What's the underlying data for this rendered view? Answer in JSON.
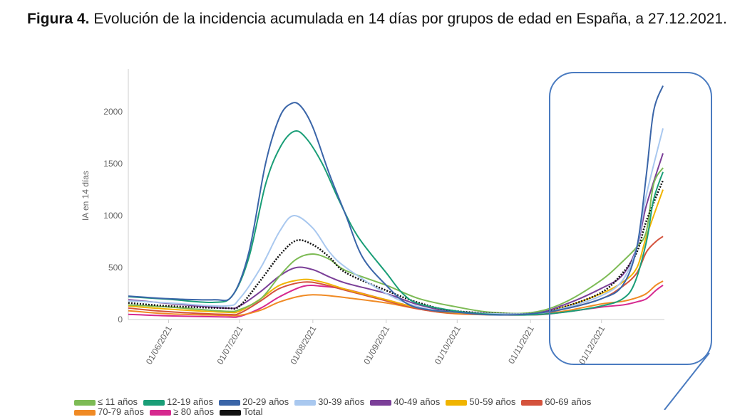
{
  "title": {
    "label": "Figura 4.",
    "text": " Evolución de la incidencia acumulada en 14 días por grupos de edad en España, a 27.12.2021."
  },
  "chart_data": {
    "type": "line",
    "title": "",
    "xlabel": "",
    "ylabel": "IA en 14 días",
    "ylim": [
      0,
      2400
    ],
    "xlim": [
      "2021-05-15",
      "2021-12-27"
    ],
    "yticks": [
      0,
      500,
      1000,
      1500,
      2000
    ],
    "xticks": [
      {
        "date": "2021-06-01",
        "label": "01/06/2021"
      },
      {
        "date": "2021-07-01",
        "label": "01/07/2021"
      },
      {
        "date": "2021-08-01",
        "label": "01/08/2021"
      },
      {
        "date": "2021-09-01",
        "label": "01/09/2021"
      },
      {
        "date": "2021-10-01",
        "label": "01/10/2021"
      },
      {
        "date": "2021-11-01",
        "label": "01/11/2021"
      },
      {
        "date": "2021-12-01",
        "label": "01/12/2021"
      }
    ],
    "grid": false,
    "legend": "bottom",
    "highlight": {
      "from": "2021-11-10",
      "to": "2021-12-27",
      "color": "#4a7bc0"
    },
    "series": [
      {
        "name": "≤ 11 años",
        "color": "#7dbb55",
        "dashed": false,
        "points": [
          [
            "2021-05-15",
            140
          ],
          [
            "2021-06-01",
            120
          ],
          [
            "2021-06-25",
            80
          ],
          [
            "2021-07-01",
            95
          ],
          [
            "2021-07-10",
            200
          ],
          [
            "2021-07-18",
            420
          ],
          [
            "2021-07-25",
            580
          ],
          [
            "2021-08-01",
            630
          ],
          [
            "2021-08-08",
            580
          ],
          [
            "2021-08-15",
            470
          ],
          [
            "2021-09-01",
            330
          ],
          [
            "2021-09-15",
            200
          ],
          [
            "2021-10-01",
            120
          ],
          [
            "2021-10-15",
            70
          ],
          [
            "2021-11-01",
            65
          ],
          [
            "2021-11-15",
            160
          ],
          [
            "2021-12-01",
            380
          ],
          [
            "2021-12-10",
            560
          ],
          [
            "2021-12-16",
            700
          ],
          [
            "2021-12-20",
            850
          ],
          [
            "2021-12-23",
            1300
          ],
          [
            "2021-12-27",
            1460
          ]
        ]
      },
      {
        "name": "12-19 años",
        "color": "#1a9e77",
        "dashed": false,
        "points": [
          [
            "2021-05-15",
            220
          ],
          [
            "2021-06-01",
            195
          ],
          [
            "2021-06-20",
            165
          ],
          [
            "2021-06-28",
            230
          ],
          [
            "2021-07-05",
            600
          ],
          [
            "2021-07-12",
            1300
          ],
          [
            "2021-07-18",
            1650
          ],
          [
            "2021-07-24",
            1810
          ],
          [
            "2021-07-29",
            1750
          ],
          [
            "2021-08-05",
            1500
          ],
          [
            "2021-08-12",
            1150
          ],
          [
            "2021-08-20",
            800
          ],
          [
            "2021-09-01",
            450
          ],
          [
            "2021-09-08",
            250
          ],
          [
            "2021-09-15",
            150
          ],
          [
            "2021-10-01",
            80
          ],
          [
            "2021-10-15",
            50
          ],
          [
            "2021-11-01",
            45
          ],
          [
            "2021-11-15",
            70
          ],
          [
            "2021-12-01",
            130
          ],
          [
            "2021-12-10",
            200
          ],
          [
            "2021-12-15",
            350
          ],
          [
            "2021-12-20",
            750
          ],
          [
            "2021-12-23",
            1150
          ],
          [
            "2021-12-27",
            1420
          ]
        ]
      },
      {
        "name": "20-29 años",
        "color": "#3a65a8",
        "dashed": false,
        "points": [
          [
            "2021-05-15",
            225
          ],
          [
            "2021-06-01",
            200
          ],
          [
            "2021-06-20",
            190
          ],
          [
            "2021-06-28",
            230
          ],
          [
            "2021-07-05",
            650
          ],
          [
            "2021-07-12",
            1500
          ],
          [
            "2021-07-18",
            1950
          ],
          [
            "2021-07-23",
            2080
          ],
          [
            "2021-07-27",
            2050
          ],
          [
            "2021-08-01",
            1850
          ],
          [
            "2021-08-08",
            1400
          ],
          [
            "2021-08-15",
            1000
          ],
          [
            "2021-08-22",
            600
          ],
          [
            "2021-09-01",
            330
          ],
          [
            "2021-09-10",
            150
          ],
          [
            "2021-09-20",
            90
          ],
          [
            "2021-10-01",
            70
          ],
          [
            "2021-10-15",
            45
          ],
          [
            "2021-11-01",
            55
          ],
          [
            "2021-11-15",
            100
          ],
          [
            "2021-12-01",
            200
          ],
          [
            "2021-12-10",
            330
          ],
          [
            "2021-12-16",
            700
          ],
          [
            "2021-12-20",
            1400
          ],
          [
            "2021-12-23",
            2000
          ],
          [
            "2021-12-27",
            2250
          ]
        ]
      },
      {
        "name": "30-39 años",
        "color": "#a9c8ef",
        "dashed": false,
        "points": [
          [
            "2021-05-15",
            180
          ],
          [
            "2021-06-01",
            160
          ],
          [
            "2021-06-25",
            130
          ],
          [
            "2021-07-01",
            200
          ],
          [
            "2021-07-10",
            500
          ],
          [
            "2021-07-18",
            850
          ],
          [
            "2021-07-24",
            1000
          ],
          [
            "2021-08-01",
            880
          ],
          [
            "2021-08-08",
            650
          ],
          [
            "2021-08-15",
            500
          ],
          [
            "2021-09-01",
            250
          ],
          [
            "2021-09-15",
            120
          ],
          [
            "2021-10-01",
            70
          ],
          [
            "2021-11-01",
            55
          ],
          [
            "2021-11-15",
            110
          ],
          [
            "2021-12-01",
            230
          ],
          [
            "2021-12-10",
            380
          ],
          [
            "2021-12-16",
            700
          ],
          [
            "2021-12-20",
            1200
          ],
          [
            "2021-12-27",
            1840
          ]
        ]
      },
      {
        "name": "40-49 años",
        "color": "#7b3f98",
        "dashed": false,
        "points": [
          [
            "2021-05-15",
            190
          ],
          [
            "2021-06-01",
            155
          ],
          [
            "2021-06-25",
            110
          ],
          [
            "2021-07-01",
            130
          ],
          [
            "2021-07-10",
            270
          ],
          [
            "2021-07-18",
            420
          ],
          [
            "2021-07-25",
            500
          ],
          [
            "2021-08-01",
            480
          ],
          [
            "2021-08-08",
            410
          ],
          [
            "2021-08-15",
            350
          ],
          [
            "2021-09-01",
            250
          ],
          [
            "2021-09-15",
            140
          ],
          [
            "2021-10-01",
            75
          ],
          [
            "2021-11-01",
            60
          ],
          [
            "2021-11-15",
            140
          ],
          [
            "2021-12-01",
            300
          ],
          [
            "2021-12-10",
            430
          ],
          [
            "2021-12-16",
            700
          ],
          [
            "2021-12-20",
            1100
          ],
          [
            "2021-12-27",
            1600
          ]
        ]
      },
      {
        "name": "50-59 años",
        "color": "#f0b400",
        "dashed": false,
        "points": [
          [
            "2021-05-15",
            130
          ],
          [
            "2021-06-01",
            100
          ],
          [
            "2021-06-25",
            70
          ],
          [
            "2021-07-01",
            80
          ],
          [
            "2021-07-10",
            200
          ],
          [
            "2021-07-18",
            330
          ],
          [
            "2021-07-28",
            385
          ],
          [
            "2021-08-05",
            360
          ],
          [
            "2021-08-15",
            290
          ],
          [
            "2021-09-01",
            190
          ],
          [
            "2021-09-15",
            110
          ],
          [
            "2021-10-01",
            65
          ],
          [
            "2021-11-01",
            50
          ],
          [
            "2021-11-15",
            120
          ],
          [
            "2021-12-01",
            250
          ],
          [
            "2021-12-10",
            360
          ],
          [
            "2021-12-16",
            500
          ],
          [
            "2021-12-20",
            800
          ],
          [
            "2021-12-27",
            1250
          ]
        ]
      },
      {
        "name": "60-69 años",
        "color": "#d4523c",
        "dashed": false,
        "points": [
          [
            "2021-05-15",
            110
          ],
          [
            "2021-06-01",
            75
          ],
          [
            "2021-06-25",
            50
          ],
          [
            "2021-07-01",
            60
          ],
          [
            "2021-07-10",
            180
          ],
          [
            "2021-07-18",
            300
          ],
          [
            "2021-07-28",
            360
          ],
          [
            "2021-08-05",
            340
          ],
          [
            "2021-08-15",
            280
          ],
          [
            "2021-09-01",
            180
          ],
          [
            "2021-09-15",
            100
          ],
          [
            "2021-10-01",
            60
          ],
          [
            "2021-11-01",
            50
          ],
          [
            "2021-11-15",
            100
          ],
          [
            "2021-12-01",
            200
          ],
          [
            "2021-12-10",
            320
          ],
          [
            "2021-12-16",
            450
          ],
          [
            "2021-12-20",
            650
          ],
          [
            "2021-12-24",
            750
          ],
          [
            "2021-12-27",
            800
          ]
        ]
      },
      {
        "name": "70-79 años",
        "color": "#f08a24",
        "dashed": false,
        "points": [
          [
            "2021-05-15",
            85
          ],
          [
            "2021-06-01",
            55
          ],
          [
            "2021-06-25",
            40
          ],
          [
            "2021-07-01",
            40
          ],
          [
            "2021-07-10",
            90
          ],
          [
            "2021-07-18",
            170
          ],
          [
            "2021-07-28",
            230
          ],
          [
            "2021-08-05",
            235
          ],
          [
            "2021-08-15",
            210
          ],
          [
            "2021-09-01",
            160
          ],
          [
            "2021-09-15",
            100
          ],
          [
            "2021-10-01",
            55
          ],
          [
            "2021-11-01",
            45
          ],
          [
            "2021-11-15",
            80
          ],
          [
            "2021-12-01",
            150
          ],
          [
            "2021-12-10",
            175
          ],
          [
            "2021-12-16",
            210
          ],
          [
            "2021-12-20",
            250
          ],
          [
            "2021-12-24",
            330
          ],
          [
            "2021-12-27",
            370
          ]
        ]
      },
      {
        "name": "≥ 80 años",
        "color": "#d6298f",
        "dashed": false,
        "points": [
          [
            "2021-05-15",
            50
          ],
          [
            "2021-06-01",
            35
          ],
          [
            "2021-06-25",
            25
          ],
          [
            "2021-07-01",
            30
          ],
          [
            "2021-07-10",
            110
          ],
          [
            "2021-07-18",
            220
          ],
          [
            "2021-07-28",
            320
          ],
          [
            "2021-08-05",
            320
          ],
          [
            "2021-08-15",
            290
          ],
          [
            "2021-09-01",
            190
          ],
          [
            "2021-09-15",
            110
          ],
          [
            "2021-10-01",
            60
          ],
          [
            "2021-11-01",
            45
          ],
          [
            "2021-11-15",
            70
          ],
          [
            "2021-12-01",
            120
          ],
          [
            "2021-12-10",
            140
          ],
          [
            "2021-12-16",
            170
          ],
          [
            "2021-12-20",
            200
          ],
          [
            "2021-12-24",
            280
          ],
          [
            "2021-12-27",
            330
          ]
        ]
      },
      {
        "name": "Total",
        "color": "#111111",
        "dashed": true,
        "points": [
          [
            "2021-05-15",
            160
          ],
          [
            "2021-06-01",
            130
          ],
          [
            "2021-06-25",
            110
          ],
          [
            "2021-07-01",
            130
          ],
          [
            "2021-07-10",
            380
          ],
          [
            "2021-07-18",
            620
          ],
          [
            "2021-07-25",
            760
          ],
          [
            "2021-08-01",
            720
          ],
          [
            "2021-08-08",
            600
          ],
          [
            "2021-08-15",
            450
          ],
          [
            "2021-09-01",
            280
          ],
          [
            "2021-09-15",
            160
          ],
          [
            "2021-10-01",
            80
          ],
          [
            "2021-11-01",
            55
          ],
          [
            "2021-11-15",
            120
          ],
          [
            "2021-12-01",
            260
          ],
          [
            "2021-12-10",
            450
          ],
          [
            "2021-12-16",
            650
          ],
          [
            "2021-12-20",
            950
          ],
          [
            "2021-12-27",
            1340
          ]
        ]
      }
    ]
  }
}
